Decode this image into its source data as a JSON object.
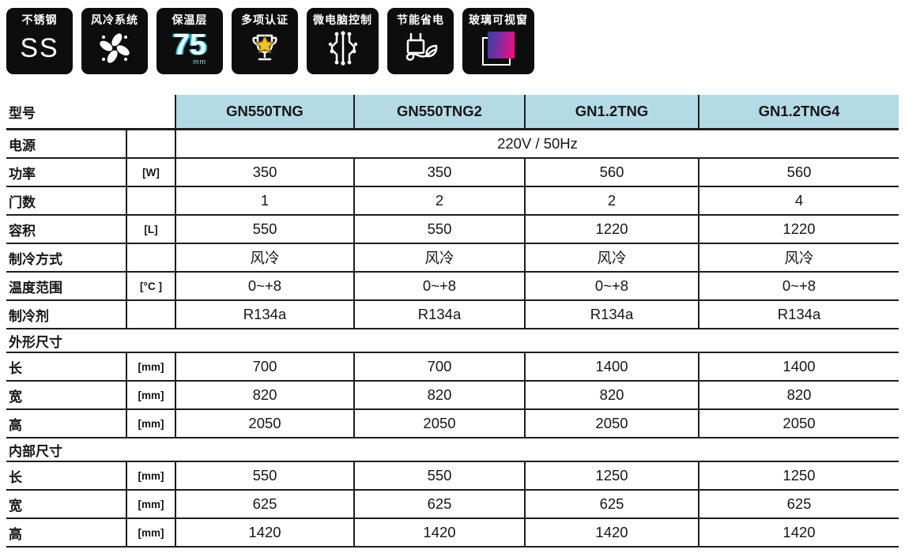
{
  "badges": [
    {
      "label": "不锈钢",
      "icon": "stainless-steel",
      "text": "SS"
    },
    {
      "label": "风冷系统",
      "icon": "fan"
    },
    {
      "label": "保温层",
      "icon": "insulation",
      "value": "75",
      "unit": "mm"
    },
    {
      "label": "多项认证",
      "icon": "trophy"
    },
    {
      "label": "微电脑控制",
      "icon": "circuit"
    },
    {
      "label": "节能省电",
      "icon": "plug-leaf"
    },
    {
      "label": "玻璃可视窗",
      "icon": "glass-window"
    }
  ],
  "table": {
    "header": {
      "label": "型号",
      "models": [
        "GN550TNG",
        "GN550TNG2",
        "GN1.2TNG",
        "GN1.2TNG4"
      ]
    },
    "rows": [
      {
        "type": "span",
        "label": "电源",
        "unit": "",
        "value": "220V / 50Hz"
      },
      {
        "type": "data",
        "label": "功率",
        "unit": "[W]",
        "values": [
          "350",
          "350",
          "560",
          "560"
        ]
      },
      {
        "type": "data",
        "label": "门数",
        "unit": "",
        "values": [
          "1",
          "2",
          "2",
          "4"
        ]
      },
      {
        "type": "data",
        "label": "容积",
        "unit": "[L]",
        "values": [
          "550",
          "550",
          "1220",
          "1220"
        ]
      },
      {
        "type": "data",
        "label": "制冷方式",
        "unit": "",
        "values": [
          "风冷",
          "风冷",
          "风冷",
          "风冷"
        ]
      },
      {
        "type": "data",
        "label": "温度范围",
        "unit": "[°C ]",
        "values": [
          "0~+8",
          "0~+8",
          "0~+8",
          "0~+8"
        ]
      },
      {
        "type": "data",
        "label": "制冷剂",
        "unit": "",
        "values": [
          "R134a",
          "R134a",
          "R134a",
          "R134a"
        ]
      },
      {
        "type": "section",
        "label": "外形尺寸"
      },
      {
        "type": "data",
        "label": "长",
        "unit": "[mm]",
        "values": [
          "700",
          "700",
          "1400",
          "1400"
        ]
      },
      {
        "type": "data",
        "label": "宽",
        "unit": "[mm]",
        "values": [
          "820",
          "820",
          "820",
          "820"
        ]
      },
      {
        "type": "data",
        "label": "高",
        "unit": "[mm]",
        "values": [
          "2050",
          "2050",
          "2050",
          "2050"
        ]
      },
      {
        "type": "section",
        "label": "内部尺寸"
      },
      {
        "type": "data",
        "label": "长",
        "unit": "[mm]",
        "values": [
          "550",
          "550",
          "1250",
          "1250"
        ]
      },
      {
        "type": "data",
        "label": "宽",
        "unit": "[mm]",
        "values": [
          "625",
          "625",
          "625",
          "625"
        ]
      },
      {
        "type": "data",
        "label": "高",
        "unit": "[mm]",
        "values": [
          "1420",
          "1420",
          "1420",
          "1420"
        ]
      }
    ]
  },
  "colors": {
    "header_bg": "#b4dae6",
    "border": "#1d1d1d",
    "tile_bg": "#0d0d0d",
    "accent_cyan": "#2ab8dd",
    "star_gold": "#f2c12e",
    "gradient_blue": "#3a3f9f",
    "gradient_pink": "#ec107e"
  }
}
